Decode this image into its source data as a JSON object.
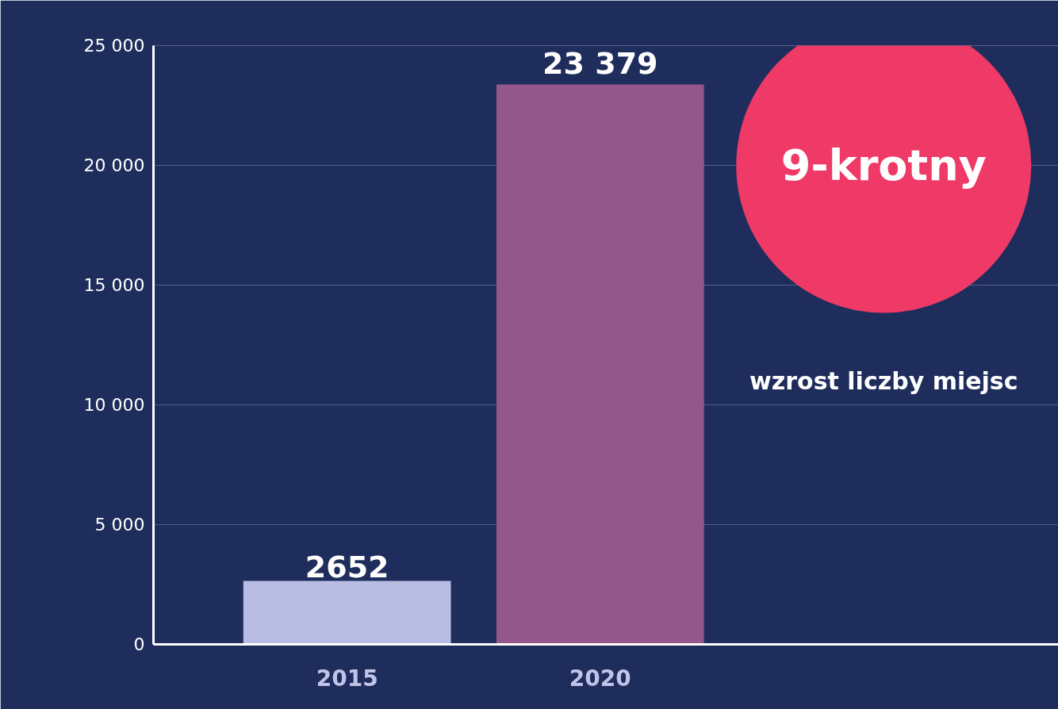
{
  "chart_data": {
    "type": "bar",
    "categories": [
      "2015",
      "2020"
    ],
    "values": [
      2652,
      23379
    ],
    "colors": [
      "#b9bde3",
      "#93578c"
    ],
    "value_labels": [
      "2652",
      "23 379"
    ],
    "ylim": [
      0,
      25000
    ],
    "yticks": [
      {
        "value": 0,
        "label": "0"
      },
      {
        "value": 5000,
        "label": "5 000"
      },
      {
        "value": 10000,
        "label": "10 000"
      },
      {
        "value": 15000,
        "label": "15 000"
      },
      {
        "value": 20000,
        "label": "20 000"
      },
      {
        "value": 25000,
        "label": "25 000"
      }
    ],
    "grid": "y",
    "annotations": [
      "9-krotny",
      "wzrost liczby miejsc"
    ]
  }
}
